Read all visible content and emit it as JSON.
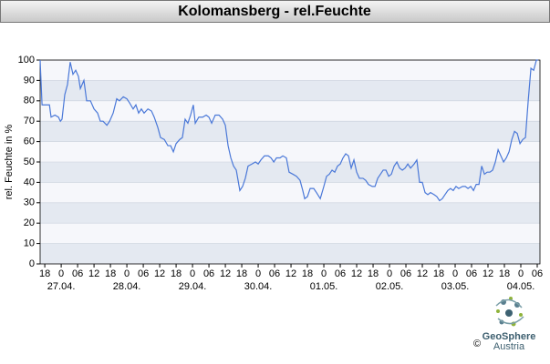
{
  "header": {
    "title": "Kolomansberg - rel.Feuchte"
  },
  "chart_data": {
    "type": "line",
    "y_label": "rel. Feuchte in %",
    "color": "#4a78d8",
    "band_colors": [
      "#e4e9f1",
      "#f6f7fb"
    ],
    "ylim": [
      0,
      100
    ],
    "yticks": [
      0,
      10,
      20,
      30,
      40,
      50,
      60,
      70,
      80,
      90,
      100
    ],
    "xlim": [
      -7.7,
      175
    ],
    "xticks": [
      {
        "value": -6,
        "label": "18"
      },
      {
        "value": 0,
        "label": "0"
      },
      {
        "value": 6,
        "label": "06"
      },
      {
        "value": 12,
        "label": "12"
      },
      {
        "value": 18,
        "label": "18"
      },
      {
        "value": 24,
        "label": "0"
      },
      {
        "value": 30,
        "label": "06"
      },
      {
        "value": 36,
        "label": "12"
      },
      {
        "value": 42,
        "label": "18"
      },
      {
        "value": 48,
        "label": "0"
      },
      {
        "value": 54,
        "label": "06"
      },
      {
        "value": 60,
        "label": "12"
      },
      {
        "value": 66,
        "label": "18"
      },
      {
        "value": 72,
        "label": "0"
      },
      {
        "value": 78,
        "label": "06"
      },
      {
        "value": 84,
        "label": "12"
      },
      {
        "value": 90,
        "label": "18"
      },
      {
        "value": 96,
        "label": "0"
      },
      {
        "value": 102,
        "label": "06"
      },
      {
        "value": 108,
        "label": "12"
      },
      {
        "value": 114,
        "label": "18"
      },
      {
        "value": 120,
        "label": "0"
      },
      {
        "value": 126,
        "label": "06"
      },
      {
        "value": 132,
        "label": "12"
      },
      {
        "value": 138,
        "label": "18"
      },
      {
        "value": 144,
        "label": "0"
      },
      {
        "value": 150,
        "label": "06"
      },
      {
        "value": 156,
        "label": "12"
      },
      {
        "value": 162,
        "label": "18"
      },
      {
        "value": 168,
        "label": "0"
      },
      {
        "value": 174,
        "label": "06"
      }
    ],
    "date_labels": [
      {
        "value": 0,
        "label": "27.04."
      },
      {
        "value": 24,
        "label": "28.04."
      },
      {
        "value": 48,
        "label": "29.04."
      },
      {
        "value": 72,
        "label": "30.04."
      },
      {
        "value": 96,
        "label": "01.05."
      },
      {
        "value": 120,
        "label": "02.05."
      },
      {
        "value": 144,
        "label": "03.05."
      },
      {
        "value": 168,
        "label": "04.05."
      }
    ],
    "x": [
      -7.7,
      -7,
      -5.7,
      -4.3,
      -3.7,
      -2.3,
      -1,
      -0.3,
      0.3,
      1.3,
      2.3,
      3.3,
      4.3,
      5.3,
      6.3,
      7,
      8.3,
      9.3,
      10.7,
      12,
      13.3,
      14.3,
      15.3,
      16.7,
      17.7,
      19,
      20.3,
      21.3,
      22.7,
      24,
      25,
      26.3,
      27.3,
      28.3,
      29.3,
      30.3,
      31.7,
      33,
      34,
      35.3,
      36.3,
      37.7,
      39,
      40,
      41,
      42,
      43.3,
      44.3,
      45.3,
      46.3,
      47.3,
      48.3,
      49,
      50.3,
      51.7,
      53,
      54,
      55,
      56.3,
      57.7,
      59,
      60,
      61,
      62,
      63,
      64,
      65.3,
      66.3,
      67.3,
      68.3,
      69.7,
      71,
      72,
      73,
      74.3,
      75.7,
      76.7,
      77.7,
      78.7,
      80,
      81,
      82.3,
      83.3,
      84.7,
      86,
      87.3,
      88.3,
      89,
      90,
      91,
      92.3,
      93.3,
      94.7,
      96,
      97,
      98,
      99,
      100,
      101,
      102,
      103,
      104,
      105,
      106,
      107,
      108,
      109,
      110.3,
      111.3,
      112.3,
      113.7,
      114.7,
      115.7,
      116.7,
      117.7,
      118.7,
      119.7,
      120.7,
      121.7,
      122.7,
      123.7,
      124.7,
      125.7,
      126.7,
      127.7,
      129,
      130,
      131,
      132,
      133,
      134,
      135,
      136.3,
      137.3,
      138.3,
      139.3,
      140.3,
      141.3,
      142.3,
      143.3,
      144.3,
      145.3,
      146.7,
      147.7,
      148.7,
      149.7,
      150.7,
      151.7,
      152.7,
      153.7,
      154.7,
      155.7,
      156.7,
      157.7,
      158.7,
      159.7,
      160.7,
      161.7,
      162.7,
      163.7,
      164.7,
      165.7,
      166.7,
      167.7,
      168.7,
      169.7,
      170.7,
      171.7,
      172.7,
      173.7,
      174.3
    ],
    "values": [
      100,
      78,
      78,
      78,
      72,
      73,
      72,
      70,
      71,
      83,
      88,
      99,
      93,
      95,
      92,
      86,
      90,
      80,
      80,
      76,
      74,
      70,
      70,
      68,
      70,
      74,
      81,
      80,
      82,
      81,
      79,
      76,
      78,
      74,
      76,
      74,
      76,
      75,
      72,
      67,
      62,
      61,
      58,
      58,
      55,
      59,
      61,
      62,
      71,
      69,
      73,
      78,
      69,
      72,
      72,
      73,
      72,
      69,
      73,
      73,
      71,
      68,
      58,
      52,
      48,
      46,
      36,
      38,
      42,
      48,
      49,
      50,
      49,
      51,
      53,
      53,
      52,
      50,
      52,
      52,
      53,
      52,
      45,
      44,
      43,
      41,
      36,
      32,
      33,
      37,
      37,
      35,
      32,
      38,
      43,
      44,
      46,
      45,
      48,
      49,
      52,
      54,
      53,
      47,
      51,
      45,
      42,
      42,
      41,
      39,
      38,
      38,
      42,
      44,
      46,
      46,
      43,
      44,
      48,
      50,
      47,
      46,
      47,
      49,
      47,
      49,
      51,
      40,
      40,
      35,
      34,
      35,
      34,
      33,
      31,
      32,
      34,
      36,
      37,
      36,
      38,
      37,
      38,
      38,
      37,
      38,
      36,
      39,
      39,
      48,
      44,
      45,
      45,
      46,
      50,
      56,
      53,
      50,
      52,
      55,
      61,
      65,
      64,
      59,
      61,
      62,
      80,
      96,
      95,
      100,
      100
    ]
  },
  "footer": {
    "brand": "GeoSphere",
    "country": "Austria",
    "copyright": "©"
  }
}
